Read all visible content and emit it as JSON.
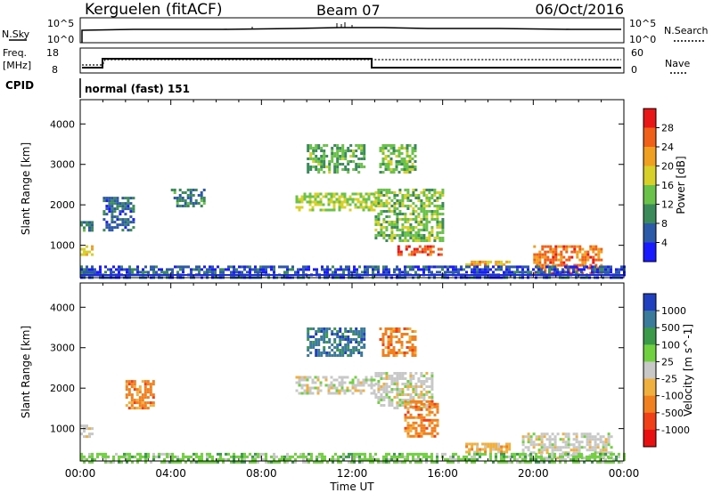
{
  "header": {
    "station": "Kerguelen (fitACF)",
    "beam": "Beam 07",
    "date": "06/Oct/2016"
  },
  "nsky_panel": {
    "left_label": "N.Sky",
    "right_label": "N.Search",
    "left_ticks": [
      "10^5",
      "10^0"
    ],
    "right_ticks": [
      "10^5",
      "10^0"
    ]
  },
  "freq_panel": {
    "left_label_1": "Freq.",
    "left_label_2": "[MHz]",
    "right_label": "Nave",
    "left_ticks": [
      "18",
      "8"
    ],
    "right_ticks": [
      "60",
      "0"
    ]
  },
  "cpid": {
    "label": "CPID",
    "value": "normal (fast) 151"
  },
  "time_axis": {
    "label": "Time UT",
    "ticks": [
      "00:00",
      "04:00",
      "08:00",
      "12:00",
      "16:00",
      "20:00",
      "00:00"
    ]
  },
  "power_panel": {
    "ylabel": "Slant Range [km]",
    "yticks": [
      "1000",
      "2000",
      "3000",
      "4000"
    ],
    "colorbar_label": "Power [dB]",
    "colorbar_ticks": [
      "4",
      "8",
      "12",
      "16",
      "20",
      "24",
      "28"
    ],
    "colors": [
      "#1a1aff",
      "#2d5aa8",
      "#3a8a5a",
      "#6ac24a",
      "#d8d02a",
      "#f0a020",
      "#f06018",
      "#e81818"
    ]
  },
  "velocity_panel": {
    "ylabel": "Slant Range [km]",
    "yticks": [
      "1000",
      "2000",
      "3000",
      "4000"
    ],
    "colorbar_label": "Velocity [m s^-1]",
    "colorbar_ticks": [
      "1000",
      "500",
      "100",
      "25",
      "-25",
      "-100",
      "-500",
      "-1000"
    ],
    "colors": [
      "#2040c0",
      "#3a7a9a",
      "#3a9a4a",
      "#70d040",
      "#c8c8c8",
      "#f0b040",
      "#f08020",
      "#f04018",
      "#e81010"
    ]
  },
  "chart_data": {
    "type": "heatmap",
    "x_unit": "hours UT",
    "xlim": [
      0,
      24
    ],
    "y_unit": "km",
    "ylim": [
      200,
      4600
    ],
    "power_regions": [
      {
        "t0": 0.0,
        "t1": 0.5,
        "r0": 300,
        "r1": 500,
        "power": 10
      },
      {
        "t0": 0.0,
        "t1": 0.5,
        "r0": 800,
        "r1": 1000,
        "power": 20
      },
      {
        "t0": 0.0,
        "t1": 0.5,
        "r0": 1400,
        "r1": 1600,
        "power": 8
      },
      {
        "t0": 1.0,
        "t1": 2.4,
        "r0": 1400,
        "r1": 2200,
        "power": 6
      },
      {
        "t0": 4.0,
        "t1": 5.5,
        "r0": 2000,
        "r1": 2400,
        "power": 8
      },
      {
        "t0": 9.5,
        "t1": 13.0,
        "r0": 1900,
        "r1": 2300,
        "power": 16
      },
      {
        "t0": 10.0,
        "t1": 12.5,
        "r0": 2800,
        "r1": 3500,
        "power": 12
      },
      {
        "t0": 13.2,
        "t1": 14.8,
        "r0": 2800,
        "r1": 3500,
        "power": 14
      },
      {
        "t0": 13.0,
        "t1": 16.0,
        "r0": 1100,
        "r1": 2400,
        "power": 14
      },
      {
        "t0": 14.0,
        "t1": 16.0,
        "r0": 750,
        "r1": 1000,
        "power": 28
      },
      {
        "t0": 17.0,
        "t1": 19.0,
        "r0": 500,
        "r1": 620,
        "power": 22
      },
      {
        "t0": 20.0,
        "t1": 23.0,
        "r0": 300,
        "r1": 1000,
        "power": 26
      },
      {
        "t0": 0.0,
        "t1": 24.0,
        "r0": 200,
        "r1": 500,
        "power": 4
      }
    ],
    "velocity_regions": [
      {
        "t0": 0.0,
        "t1": 0.5,
        "r0": 800,
        "r1": 1100,
        "velocity": 25
      },
      {
        "t0": 2.0,
        "t1": 3.2,
        "r0": 1500,
        "r1": 2200,
        "velocity": -300
      },
      {
        "t0": 9.5,
        "t1": 13.0,
        "r0": 1900,
        "r1": 2300,
        "velocity": 0
      },
      {
        "t0": 10.0,
        "t1": 12.5,
        "r0": 2800,
        "r1": 3500,
        "velocity": 300
      },
      {
        "t0": 13.2,
        "t1": 14.8,
        "r0": 2800,
        "r1": 3500,
        "velocity": -200
      },
      {
        "t0": 13.0,
        "t1": 15.5,
        "r0": 1500,
        "r1": 2400,
        "velocity": 0
      },
      {
        "t0": 14.3,
        "t1": 15.8,
        "r0": 800,
        "r1": 1700,
        "velocity": -150
      },
      {
        "t0": 17.0,
        "t1": 19.0,
        "r0": 450,
        "r1": 650,
        "velocity": -60
      },
      {
        "t0": 19.5,
        "t1": 23.5,
        "r0": 300,
        "r1": 900,
        "velocity": 0
      },
      {
        "t0": 0.0,
        "t1": 24.0,
        "r0": 200,
        "r1": 400,
        "velocity": 50
      }
    ]
  }
}
